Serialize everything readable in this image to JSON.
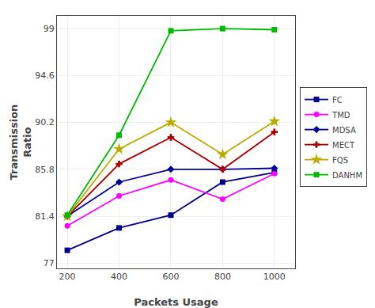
{
  "chart_data": {
    "type": "line",
    "xlabel": "Packets Usage",
    "ylabel": "Transmission\nRatio",
    "x": [
      200,
      400,
      600,
      800,
      1000
    ],
    "series": [
      {
        "name": "FC",
        "color": "#00008B",
        "marker": "square",
        "values": [
          78.2,
          80.3,
          81.5,
          84.6,
          85.5
        ]
      },
      {
        "name": "TMD",
        "color": "#FF00FF",
        "marker": "circle",
        "values": [
          80.5,
          83.3,
          84.8,
          83.0,
          85.4
        ]
      },
      {
        "name": "MDSA",
        "color": "#000099",
        "marker": "diamond",
        "values": [
          81.4,
          84.6,
          85.8,
          85.8,
          85.9
        ]
      },
      {
        "name": "MECT",
        "color": "#AA0000",
        "marker": "plus",
        "values": [
          81.4,
          86.3,
          88.8,
          85.8,
          89.3
        ]
      },
      {
        "name": "FQS",
        "color": "#BBAA00",
        "marker": "star",
        "values": [
          81.4,
          87.7,
          90.2,
          87.2,
          90.3
        ]
      },
      {
        "name": "DANHM",
        "color": "#00BB00",
        "marker": "square",
        "values": [
          81.5,
          89.0,
          98.8,
          99.0,
          98.9
        ]
      }
    ],
    "xlim": [
      160,
      1080
    ],
    "xticks": [
      200,
      400,
      600,
      800,
      1000
    ],
    "ylim": [
      76.5,
      100.2
    ],
    "yticks": [
      77,
      81.4,
      85.8,
      90.2,
      94.6,
      99
    ],
    "grid": true,
    "legend": "right"
  }
}
